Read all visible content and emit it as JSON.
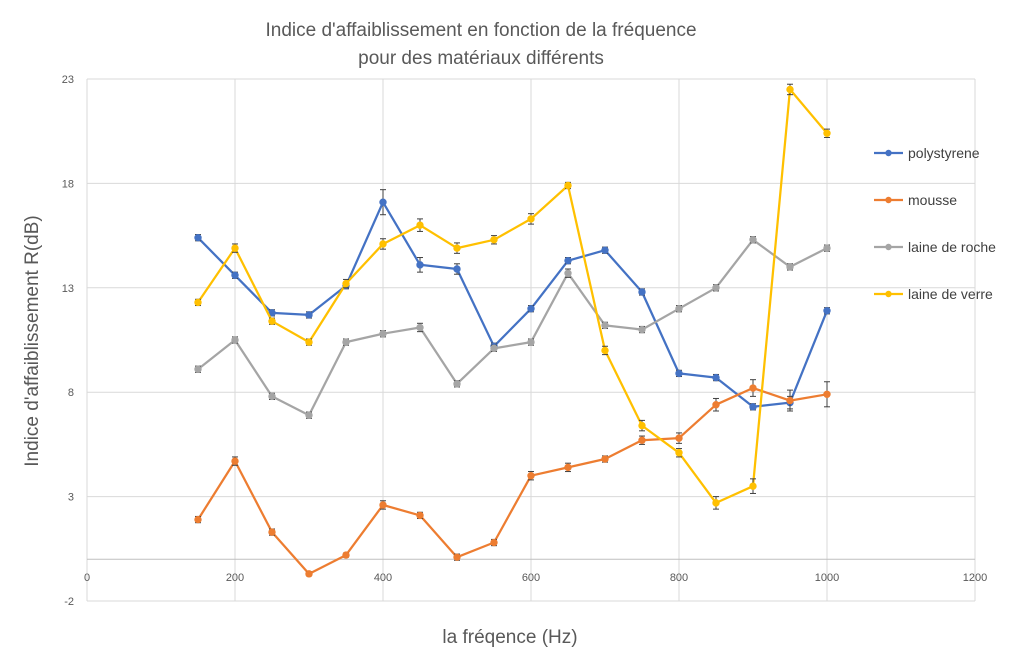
{
  "chart_data": {
    "type": "line",
    "title": [
      "Indice d'affaiblissement en fonction de la fréquence",
      "pour des matériaux différents"
    ],
    "xlabel": "la fréqence (Hz)",
    "ylabel": "Indice d'affaiblissement R(dB)",
    "xlim": [
      0,
      1200
    ],
    "ylim": [
      -2,
      23
    ],
    "xticks": [
      "0",
      "200",
      "400",
      "600",
      "800",
      "1000",
      "1200"
    ],
    "yticks": [
      "-2",
      "3",
      "8",
      "13",
      "18",
      "23"
    ],
    "grid": true,
    "legend_position": "right",
    "x": [
      150,
      200,
      250,
      300,
      350,
      400,
      450,
      500,
      550,
      600,
      650,
      700,
      750,
      800,
      850,
      900,
      950,
      1000
    ],
    "series": [
      {
        "name": "polystyrene",
        "color": "#4472C4",
        "values": [
          15.4,
          13.6,
          11.8,
          11.7,
          13.1,
          17.1,
          14.1,
          13.9,
          10.2,
          12.0,
          14.3,
          14.8,
          12.8,
          8.9,
          8.7,
          7.3,
          7.5,
          11.9
        ],
        "errors": [
          0.15,
          0.15,
          0.15,
          0.15,
          0.15,
          0.6,
          0.35,
          0.25,
          0.15,
          0.15,
          0.15,
          0.15,
          0.15,
          0.15,
          0.15,
          0.15,
          0.3,
          0.15
        ]
      },
      {
        "name": "mousse",
        "color": "#ED7D31",
        "values": [
          1.9,
          4.7,
          1.3,
          -0.7,
          0.2,
          2.6,
          2.1,
          0.1,
          0.8,
          4.0,
          4.4,
          4.8,
          5.7,
          5.8,
          7.4,
          8.2,
          7.6,
          7.9
        ],
        "errors": [
          0.15,
          0.2,
          0.15,
          0.1,
          0.1,
          0.2,
          0.15,
          0.15,
          0.15,
          0.2,
          0.2,
          0.15,
          0.2,
          0.25,
          0.3,
          0.4,
          0.5,
          0.6
        ]
      },
      {
        "name": "laine de roche",
        "color": "#A5A5A5",
        "values": [
          9.1,
          10.5,
          7.8,
          6.9,
          10.4,
          10.8,
          11.1,
          8.4,
          10.1,
          10.4,
          13.7,
          11.2,
          11.0,
          12.0,
          13.0,
          15.3,
          14.0,
          14.9
        ],
        "errors": [
          0.15,
          0.15,
          0.15,
          0.15,
          0.15,
          0.15,
          0.2,
          0.15,
          0.15,
          0.15,
          0.2,
          0.15,
          0.15,
          0.15,
          0.15,
          0.15,
          0.15,
          0.15
        ]
      },
      {
        "name": "laine de verre",
        "color": "#FFC000",
        "values": [
          12.3,
          14.9,
          11.4,
          10.4,
          13.2,
          15.1,
          16.0,
          14.9,
          15.3,
          16.3,
          17.9,
          10.0,
          6.4,
          5.1,
          2.7,
          3.5,
          22.5,
          20.4
        ],
        "errors": [
          0.15,
          0.2,
          0.15,
          0.15,
          0.2,
          0.25,
          0.3,
          0.25,
          0.2,
          0.25,
          0.15,
          0.2,
          0.25,
          0.2,
          0.3,
          0.35,
          0.25,
          0.2
        ]
      }
    ]
  }
}
